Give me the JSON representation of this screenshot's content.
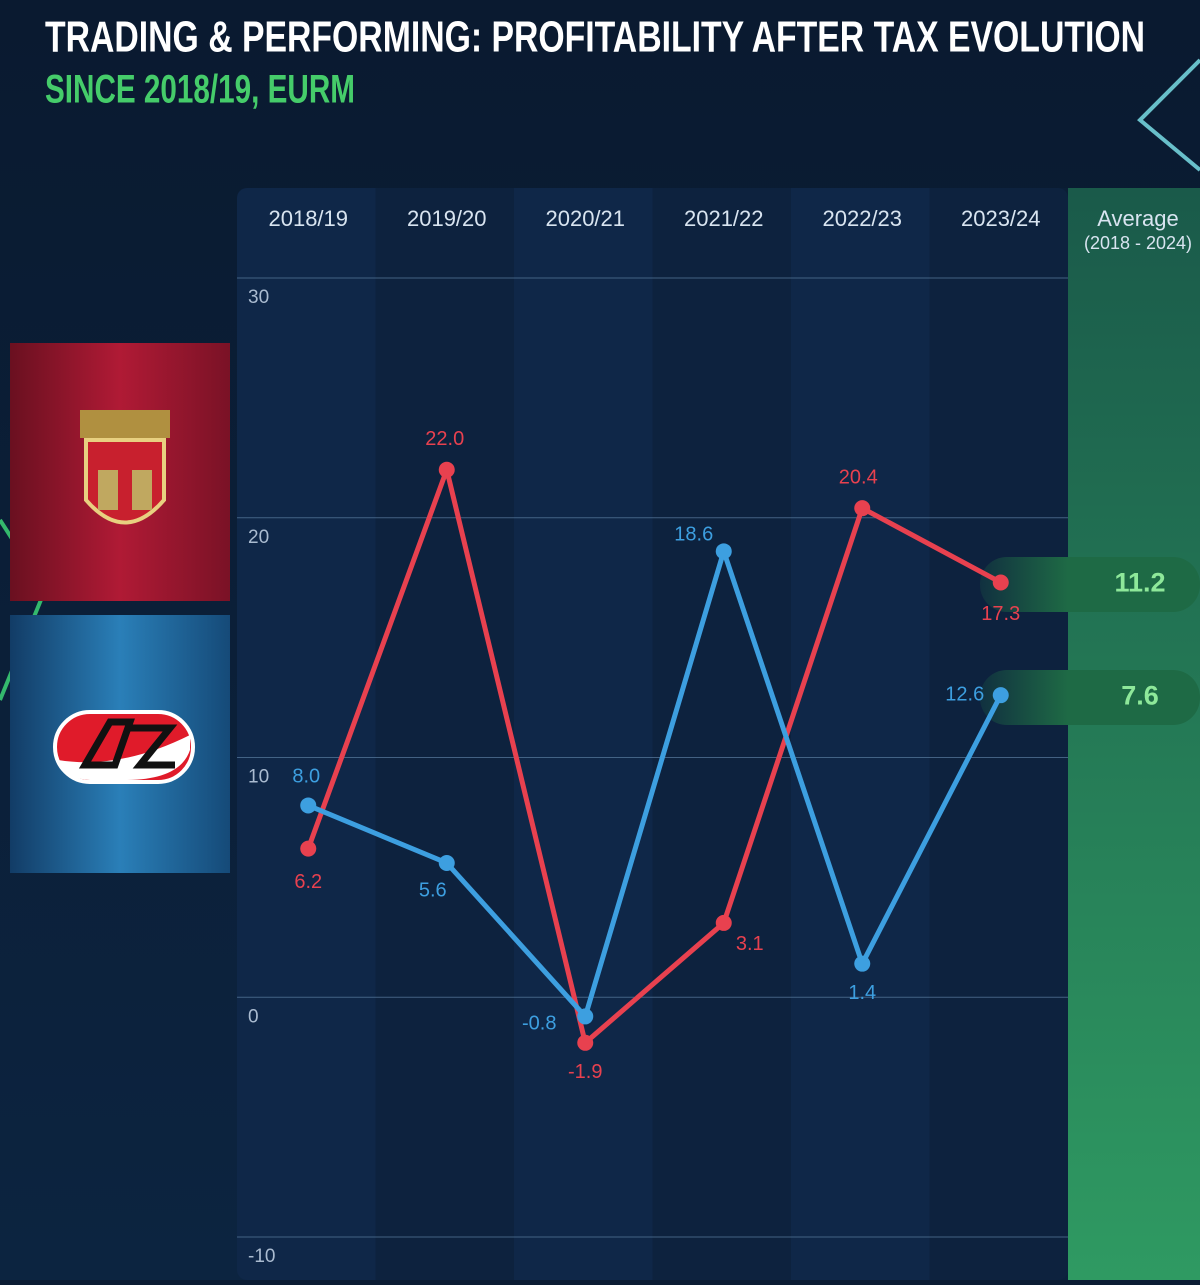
{
  "chart_data": {
    "type": "line",
    "title": "TRADING & PERFORMING: PROFITABILITY AFTER TAX EVOLUTION",
    "subtitle": "SINCE 2018/19, EURM",
    "categories": [
      "2018/19",
      "2019/20",
      "2020/21",
      "2021/22",
      "2022/23",
      "2023/24"
    ],
    "average_label": "Average",
    "average_period": "(2018 - 2024)",
    "series": [
      {
        "color": "#e8414f",
        "values": [
          6.2,
          22.0,
          -1.9,
          3.1,
          20.4,
          17.3
        ],
        "value_labels": [
          "6.2",
          "22.0",
          "-1.9",
          "3.1",
          "20.4",
          "17.3"
        ],
        "average": 11.2
      },
      {
        "color": "#3d9fe0",
        "values": [
          8.0,
          5.6,
          -0.8,
          18.6,
          1.4,
          12.6
        ],
        "value_labels": [
          "8.0",
          "5.6",
          "-0.8",
          "18.6",
          "1.4",
          "12.6"
        ],
        "average": 7.6
      }
    ],
    "ylim": [
      -10,
      30
    ],
    "yticks": [
      -10,
      0,
      10,
      20,
      30
    ],
    "grid": true
  }
}
